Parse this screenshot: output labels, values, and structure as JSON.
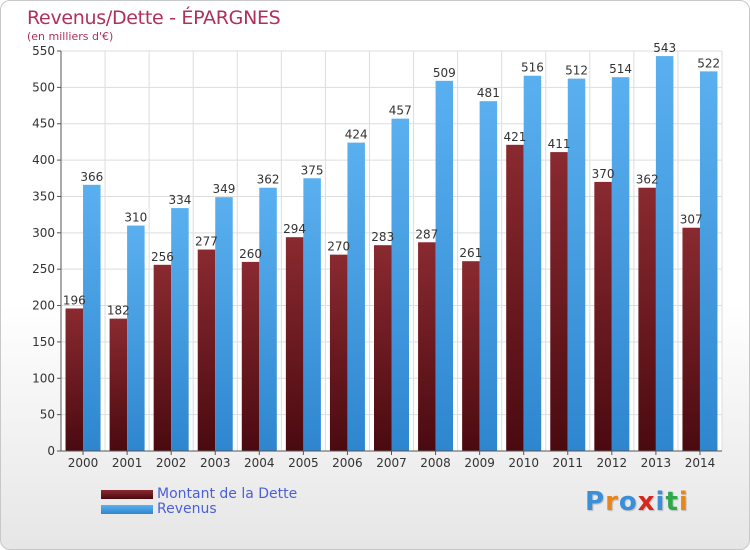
{
  "header": {
    "title": "Revenus/Dette - ÉPARGNES",
    "subtitle": "(en milliers d'€)"
  },
  "legend": {
    "debt_label": "Montant de la Dette",
    "revenue_label": "Revenus"
  },
  "logo": {
    "letters": [
      "P",
      "r",
      "o",
      "x",
      "i",
      "t",
      "i"
    ],
    "colors": [
      "#3a8fd8",
      "#e8861e",
      "#3a8fd8",
      "#d8261e",
      "#3a8fd8",
      "#2ea84a",
      "#e8861e"
    ]
  },
  "chart_data": {
    "type": "bar",
    "categories": [
      "2000",
      "2001",
      "2002",
      "2003",
      "2004",
      "2005",
      "2006",
      "2007",
      "2008",
      "2009",
      "2010",
      "2011",
      "2012",
      "2013",
      "2014"
    ],
    "series": [
      {
        "name": "Montant de la Dette",
        "color": "#6e1a1f",
        "values": [
          196,
          182,
          256,
          277,
          260,
          294,
          270,
          283,
          287,
          261,
          421,
          411,
          370,
          362,
          307
        ]
      },
      {
        "name": "Revenus",
        "color": "#4aa3e6",
        "values": [
          366,
          310,
          334,
          349,
          362,
          375,
          424,
          457,
          509,
          481,
          516,
          512,
          514,
          543,
          522
        ]
      }
    ],
    "yticks": [
      0,
      50,
      100,
      150,
      200,
      250,
      300,
      350,
      400,
      450,
      500,
      550
    ],
    "ylim": [
      0,
      550
    ],
    "grid": true,
    "legend_position": "bottom-left"
  }
}
